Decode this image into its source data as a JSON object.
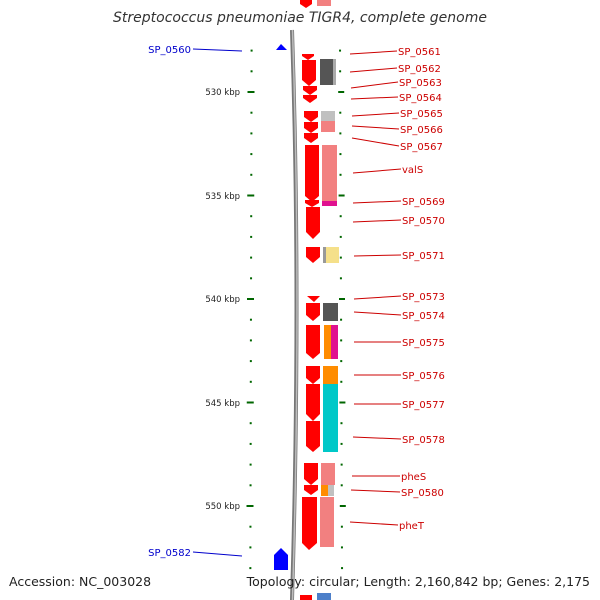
{
  "title": "Streptococcus pneumoniae TIGR4, complete genome",
  "footer": {
    "accession": "Accession: NC_003028",
    "topology": "Topology: circular; Length: 2,160,842 bp; Genes: 2,175"
  },
  "colors": {
    "forward_gene": "#ff0000",
    "reverse_gene": "#0000ff",
    "label_forward": "#cc0000",
    "label_reverse": "#0000cc",
    "ruler": "#006600",
    "backbone": "#888888"
  },
  "scale": {
    "unit": "kbp",
    "ticks": [
      {
        "label": "530 kbp",
        "kbp": 530
      },
      {
        "label": "535 kbp",
        "kbp": 535
      },
      {
        "label": "540 kbp",
        "kbp": 540
      },
      {
        "label": "545 kbp",
        "kbp": 545
      },
      {
        "label": "550 kbp",
        "kbp": 550
      }
    ]
  },
  "genes": [
    {
      "name": "SP_0560",
      "strand": "reverse"
    },
    {
      "name": "SP_0561",
      "strand": "forward"
    },
    {
      "name": "SP_0562",
      "strand": "forward"
    },
    {
      "name": "SP_0563",
      "strand": "forward"
    },
    {
      "name": "SP_0564",
      "strand": "forward"
    },
    {
      "name": "SP_0565",
      "strand": "forward"
    },
    {
      "name": "SP_0566",
      "strand": "forward"
    },
    {
      "name": "SP_0567",
      "strand": "forward"
    },
    {
      "name": "valS",
      "strand": "forward"
    },
    {
      "name": "SP_0569",
      "strand": "forward"
    },
    {
      "name": "SP_0570",
      "strand": "forward"
    },
    {
      "name": "SP_0571",
      "strand": "forward"
    },
    {
      "name": "SP_0573",
      "strand": "forward"
    },
    {
      "name": "SP_0574",
      "strand": "forward"
    },
    {
      "name": "SP_0575",
      "strand": "forward"
    },
    {
      "name": "SP_0576",
      "strand": "forward"
    },
    {
      "name": "SP_0577",
      "strand": "forward"
    },
    {
      "name": "SP_0578",
      "strand": "forward"
    },
    {
      "name": "pheS",
      "strand": "forward"
    },
    {
      "name": "SP_0580",
      "strand": "forward"
    },
    {
      "name": "pheT",
      "strand": "forward"
    },
    {
      "name": "SP_0582",
      "strand": "reverse"
    }
  ]
}
